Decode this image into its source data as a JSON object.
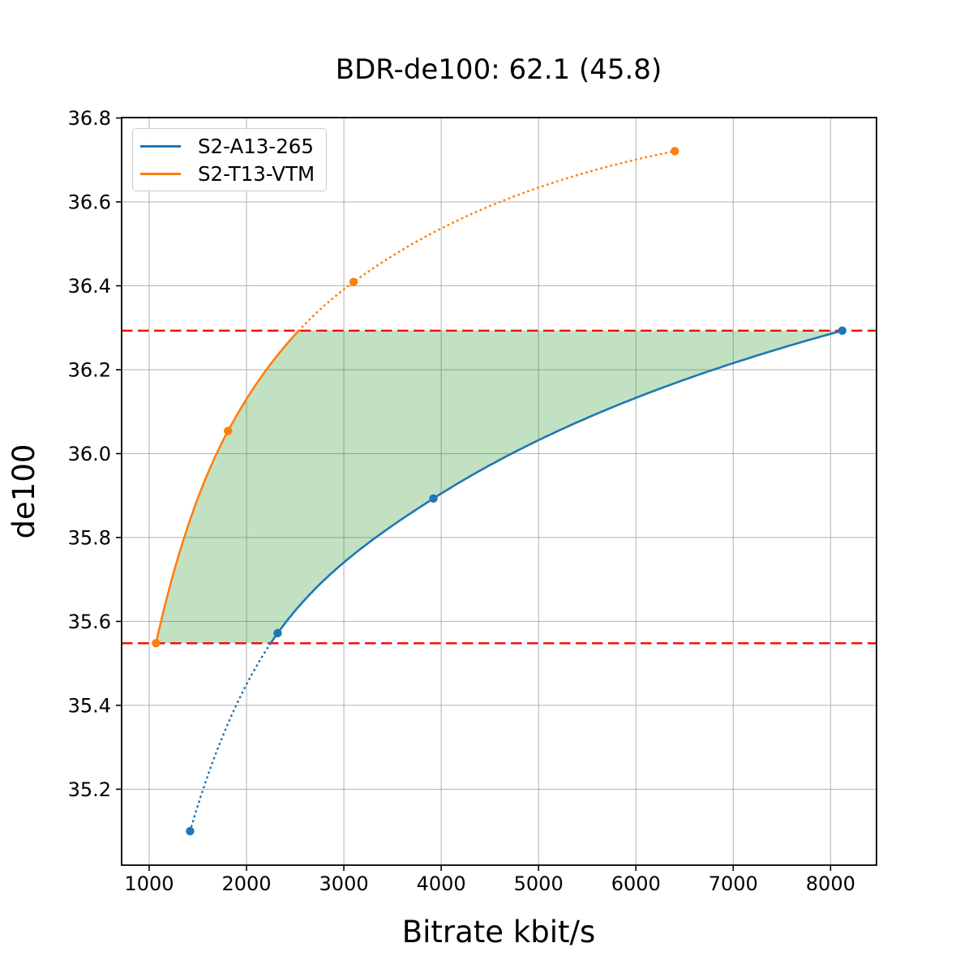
{
  "chart_data": {
    "type": "line",
    "title": "BDR-de100: 62.1 (45.8)",
    "xlabel": "Bitrate kbit/s",
    "ylabel": "de100",
    "xlim": [
      717,
      8472
    ],
    "ylim": [
      35.019,
      36.801
    ],
    "xticks": [
      1000,
      2000,
      3000,
      4000,
      5000,
      6000,
      7000,
      8000
    ],
    "yticks": [
      35.2,
      35.4,
      35.6,
      35.8,
      36.0,
      36.2,
      36.4,
      36.6,
      36.8
    ],
    "grid": true,
    "grid_color": "#b0b0b0",
    "legend_position": "upper left",
    "series": [
      {
        "name": "S2-A13-265",
        "color": "#1f77b4",
        "x": [
          1420,
          2320,
          3920,
          8120
        ],
        "y": [
          35.1,
          35.572,
          35.893,
          36.293
        ],
        "marker": "o",
        "style": "solid inside overlap range, dotted outside"
      },
      {
        "name": "S2-T13-VTM",
        "color": "#ff7f0e",
        "x": [
          1070,
          1810,
          3100,
          6400
        ],
        "y": [
          35.548,
          36.054,
          36.409,
          36.721
        ],
        "marker": "o",
        "style": "solid inside overlap range, dotted outside"
      }
    ],
    "overlap_lines": {
      "low": 35.548,
      "high": 36.293,
      "color": "#ff0000",
      "style": "dashed"
    },
    "shaded_region": {
      "color": "#008000",
      "opacity": 0.24,
      "description": "area between the two curves clipped to the overlap quality range"
    },
    "bdr_readout": {
      "bdr_de100": 62.1,
      "secondary": 45.8
    }
  }
}
